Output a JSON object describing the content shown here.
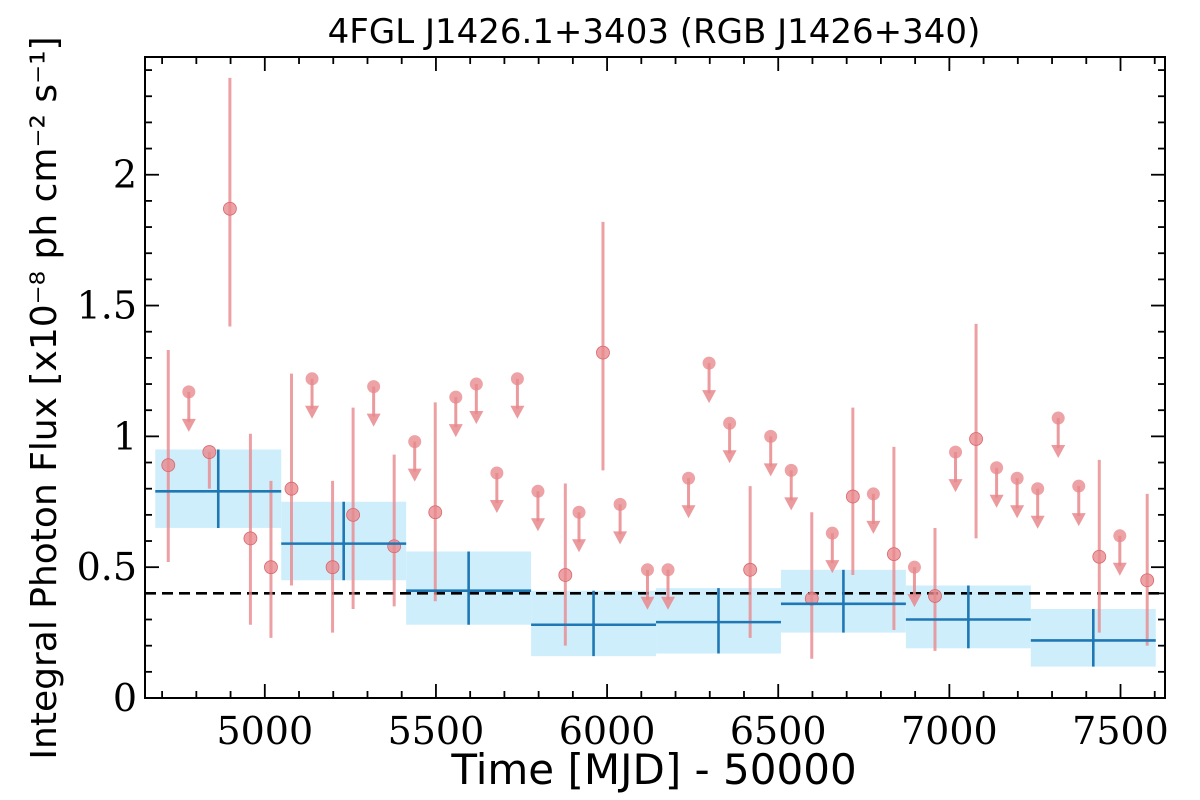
{
  "chart_data": {
    "type": "scatter",
    "title": "4FGL J1426.1+3403 (RGB J1426+340)",
    "xlabel": "Time [MJD] - 50000",
    "ylabel": "Integral Photon Flux [x10⁻⁸ ph cm⁻² s⁻¹]",
    "xlim": [
      4650,
      7630
    ],
    "ylim": [
      0,
      2.45
    ],
    "x_ticks": [
      5000,
      5500,
      6000,
      6500,
      7000,
      7500
    ],
    "y_ticks": [
      0,
      0.5,
      1,
      1.5,
      2
    ],
    "y_tick_labels": [
      "0",
      "0.5",
      "1",
      "1.5",
      "2"
    ],
    "reference_line": 0.4,
    "colors": {
      "points": "#e8888c",
      "bins": "#1f77b4",
      "band": "#cfeefc"
    },
    "series": [
      {
        "kind": "detections",
        "points": [
          {
            "x": 4718,
            "y": 0.89,
            "ylo": 0.52,
            "yhi": 1.33
          },
          {
            "x": 4838,
            "y": 0.94,
            "ylo": 0.8,
            "yhi": 0.94
          },
          {
            "x": 4898,
            "y": 1.87,
            "ylo": 1.42,
            "yhi": 2.37
          },
          {
            "x": 4958,
            "y": 0.61,
            "ylo": 0.28,
            "yhi": 1.01
          },
          {
            "x": 5018,
            "y": 0.5,
            "ylo": 0.23,
            "yhi": 0.83
          },
          {
            "x": 5078,
            "y": 0.8,
            "ylo": 0.43,
            "yhi": 1.24
          },
          {
            "x": 5198,
            "y": 0.5,
            "ylo": 0.25,
            "yhi": 0.83
          },
          {
            "x": 5258,
            "y": 0.7,
            "ylo": 0.34,
            "yhi": 1.11
          },
          {
            "x": 5378,
            "y": 0.58,
            "ylo": 0.35,
            "yhi": 0.93
          },
          {
            "x": 5498,
            "y": 0.71,
            "ylo": 0.37,
            "yhi": 1.13
          },
          {
            "x": 5878,
            "y": 0.47,
            "ylo": 0.2,
            "yhi": 0.82
          },
          {
            "x": 5988,
            "y": 1.32,
            "ylo": 0.87,
            "yhi": 1.82
          },
          {
            "x": 6418,
            "y": 0.49,
            "ylo": 0.23,
            "yhi": 0.81
          },
          {
            "x": 6598,
            "y": 0.38,
            "ylo": 0.15,
            "yhi": 0.71
          },
          {
            "x": 6718,
            "y": 0.77,
            "ylo": 0.47,
            "yhi": 1.11
          },
          {
            "x": 6838,
            "y": 0.55,
            "ylo": 0.26,
            "yhi": 0.96
          },
          {
            "x": 6958,
            "y": 0.39,
            "ylo": 0.18,
            "yhi": 0.65
          },
          {
            "x": 7078,
            "y": 0.99,
            "ylo": 0.61,
            "yhi": 1.43
          },
          {
            "x": 7438,
            "y": 0.54,
            "ylo": 0.25,
            "yhi": 0.91
          },
          {
            "x": 7578,
            "y": 0.45,
            "ylo": 0.2,
            "yhi": 0.78
          }
        ]
      },
      {
        "kind": "upper_limits",
        "points": [
          {
            "x": 4778,
            "y": 1.17
          },
          {
            "x": 5138,
            "y": 1.22
          },
          {
            "x": 5318,
            "y": 1.19
          },
          {
            "x": 5438,
            "y": 0.98
          },
          {
            "x": 5558,
            "y": 1.15
          },
          {
            "x": 5618,
            "y": 1.2
          },
          {
            "x": 5678,
            "y": 0.86
          },
          {
            "x": 5738,
            "y": 1.22
          },
          {
            "x": 5798,
            "y": 0.79
          },
          {
            "x": 5918,
            "y": 0.71
          },
          {
            "x": 6038,
            "y": 0.74
          },
          {
            "x": 6118,
            "y": 0.49
          },
          {
            "x": 6178,
            "y": 0.49
          },
          {
            "x": 6238,
            "y": 0.84
          },
          {
            "x": 6298,
            "y": 1.28
          },
          {
            "x": 6358,
            "y": 1.05
          },
          {
            "x": 6478,
            "y": 1.0
          },
          {
            "x": 6538,
            "y": 0.87
          },
          {
            "x": 6658,
            "y": 0.63
          },
          {
            "x": 6778,
            "y": 0.78
          },
          {
            "x": 6898,
            "y": 0.5
          },
          {
            "x": 7018,
            "y": 0.94
          },
          {
            "x": 7138,
            "y": 0.88
          },
          {
            "x": 7198,
            "y": 0.84
          },
          {
            "x": 7258,
            "y": 0.8
          },
          {
            "x": 7318,
            "y": 1.07
          },
          {
            "x": 7378,
            "y": 0.81
          },
          {
            "x": 7498,
            "y": 0.62
          }
        ]
      },
      {
        "kind": "binned",
        "bins": [
          {
            "x0": 4680,
            "x1": 5048,
            "y": 0.79,
            "ylo": 0.65,
            "yhi": 0.95
          },
          {
            "x0": 5048,
            "x1": 5413,
            "y": 0.59,
            "ylo": 0.45,
            "yhi": 0.75
          },
          {
            "x0": 5413,
            "x1": 5778,
            "y": 0.41,
            "ylo": 0.28,
            "yhi": 0.56
          },
          {
            "x0": 5778,
            "x1": 6143,
            "y": 0.28,
            "ylo": 0.16,
            "yhi": 0.41
          },
          {
            "x0": 6143,
            "x1": 6508,
            "y": 0.29,
            "ylo": 0.17,
            "yhi": 0.42
          },
          {
            "x0": 6508,
            "x1": 6873,
            "y": 0.36,
            "ylo": 0.25,
            "yhi": 0.49
          },
          {
            "x0": 6873,
            "x1": 7238,
            "y": 0.3,
            "ylo": 0.19,
            "yhi": 0.43
          },
          {
            "x0": 7238,
            "x1": 7603,
            "y": 0.22,
            "ylo": 0.12,
            "yhi": 0.34
          }
        ]
      }
    ]
  }
}
